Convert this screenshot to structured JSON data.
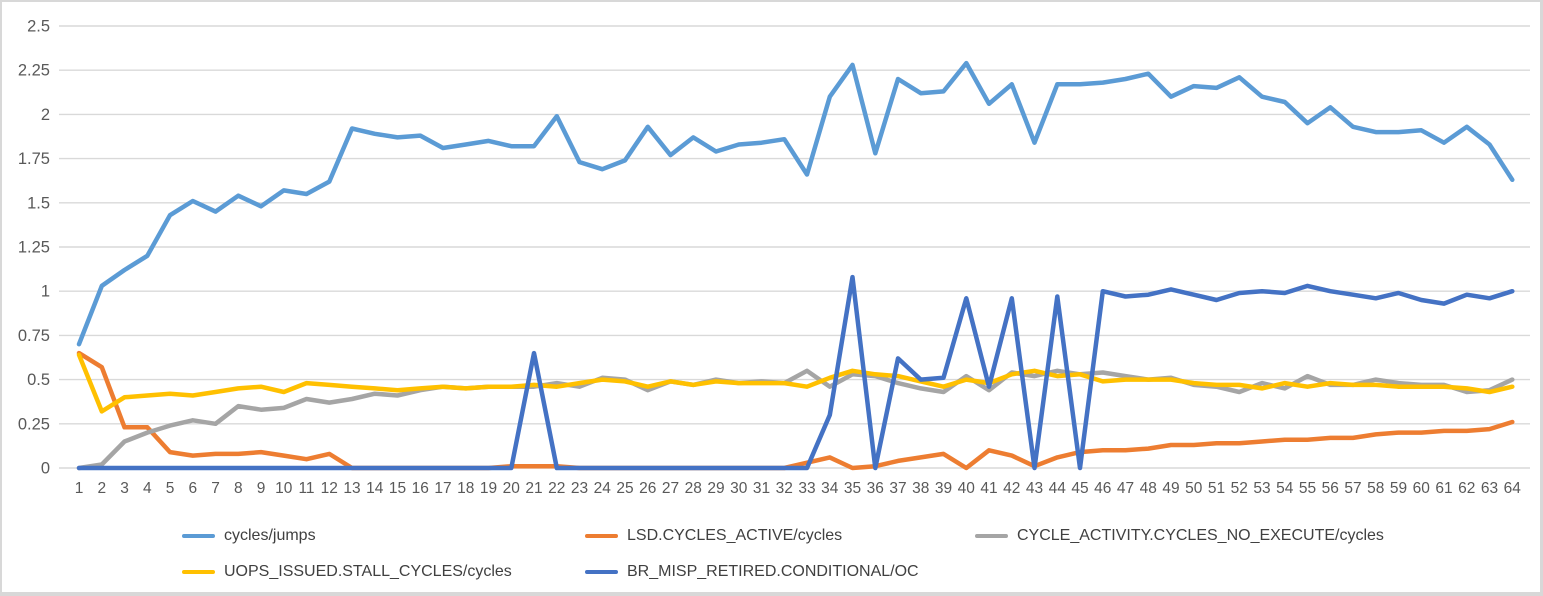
{
  "styles": {
    "background": "#FFFFFF",
    "frame_border_color": "#D8D8D8",
    "grid_color": "#D9D9D9",
    "axis_text_color": "#595959",
    "legend_text_color": "#404040"
  },
  "chart_data": {
    "type": "line",
    "title": "",
    "grid": true,
    "legend_position": "bottom",
    "ylim": [
      0,
      2.5
    ],
    "y_tick_labels": [
      "0",
      "0.25",
      "0.5",
      "0.75",
      "1",
      "1.25",
      "1.5",
      "1.75",
      "2",
      "2.25",
      "2.5"
    ],
    "y_tick_values": [
      0,
      0.25,
      0.5,
      0.75,
      1,
      1.25,
      1.5,
      1.75,
      2,
      2.25,
      2.5
    ],
    "x_categories": [
      1,
      2,
      3,
      4,
      5,
      6,
      7,
      8,
      9,
      10,
      11,
      12,
      13,
      14,
      15,
      16,
      17,
      18,
      19,
      20,
      21,
      22,
      23,
      24,
      25,
      26,
      27,
      28,
      29,
      30,
      31,
      32,
      33,
      34,
      35,
      36,
      37,
      38,
      39,
      40,
      41,
      42,
      43,
      44,
      45,
      46,
      47,
      48,
      49,
      50,
      51,
      52,
      53,
      54,
      55,
      56,
      57,
      58,
      59,
      60,
      61,
      62,
      63,
      64
    ],
    "series": [
      {
        "name": "cycles/jumps",
        "color": "#5B9BD5",
        "values": [
          0.7,
          1.03,
          1.12,
          1.2,
          1.43,
          1.51,
          1.45,
          1.54,
          1.48,
          1.57,
          1.55,
          1.62,
          1.92,
          1.89,
          1.87,
          1.88,
          1.81,
          1.83,
          1.85,
          1.82,
          1.82,
          1.99,
          1.73,
          1.69,
          1.74,
          1.93,
          1.77,
          1.87,
          1.79,
          1.83,
          1.84,
          1.86,
          1.66,
          2.1,
          2.28,
          1.78,
          2.2,
          2.12,
          2.13,
          2.29,
          2.06,
          2.17,
          1.84,
          2.17,
          2.17,
          2.18,
          2.2,
          2.23,
          2.1,
          2.16,
          2.15,
          2.21,
          2.1,
          2.07,
          1.95,
          2.04,
          1.93,
          1.9,
          1.9,
          1.91,
          1.84,
          1.93,
          1.83,
          1.63
        ]
      },
      {
        "name": "LSD.CYCLES_ACTIVE/cycles",
        "color": "#ED7D31",
        "values": [
          0.65,
          0.57,
          0.23,
          0.23,
          0.09,
          0.07,
          0.08,
          0.08,
          0.09,
          0.07,
          0.05,
          0.08,
          0,
          0,
          0,
          0,
          0,
          0,
          0,
          0.01,
          0.01,
          0.01,
          0,
          0,
          0,
          0,
          0,
          0,
          0,
          0,
          0,
          0,
          0.03,
          0.06,
          0,
          0.01,
          0.04,
          0.06,
          0.08,
          0,
          0.1,
          0.07,
          0.01,
          0.06,
          0.09,
          0.1,
          0.1,
          0.11,
          0.13,
          0.13,
          0.14,
          0.14,
          0.15,
          0.16,
          0.16,
          0.17,
          0.17,
          0.19,
          0.2,
          0.2,
          0.21,
          0.21,
          0.22,
          0.26
        ]
      },
      {
        "name": "CYCLE_ACTIVITY.CYCLES_NO_EXECUTE/cycles",
        "color": "#A5A5A5",
        "values": [
          0,
          0.02,
          0.15,
          0.2,
          0.24,
          0.27,
          0.25,
          0.35,
          0.33,
          0.34,
          0.39,
          0.37,
          0.39,
          0.42,
          0.41,
          0.44,
          0.46,
          0.45,
          0.46,
          0.46,
          0.46,
          0.48,
          0.46,
          0.51,
          0.5,
          0.44,
          0.49,
          0.47,
          0.5,
          0.48,
          0.49,
          0.48,
          0.55,
          0.46,
          0.53,
          0.52,
          0.48,
          0.45,
          0.43,
          0.52,
          0.44,
          0.54,
          0.52,
          0.55,
          0.53,
          0.54,
          0.52,
          0.5,
          0.51,
          0.47,
          0.46,
          0.43,
          0.48,
          0.45,
          0.52,
          0.47,
          0.47,
          0.5,
          0.48,
          0.47,
          0.47,
          0.43,
          0.44,
          0.5
        ]
      },
      {
        "name": "UOPS_ISSUED.STALL_CYCLES/cycles",
        "color": "#FFC000",
        "values": [
          0.64,
          0.32,
          0.4,
          0.41,
          0.42,
          0.41,
          0.43,
          0.45,
          0.46,
          0.43,
          0.48,
          0.47,
          0.46,
          0.45,
          0.44,
          0.45,
          0.46,
          0.45,
          0.46,
          0.46,
          0.47,
          0.46,
          0.48,
          0.5,
          0.49,
          0.46,
          0.49,
          0.47,
          0.49,
          0.48,
          0.48,
          0.48,
          0.46,
          0.51,
          0.55,
          0.53,
          0.52,
          0.49,
          0.46,
          0.5,
          0.48,
          0.53,
          0.55,
          0.52,
          0.53,
          0.49,
          0.5,
          0.5,
          0.5,
          0.48,
          0.47,
          0.47,
          0.45,
          0.48,
          0.46,
          0.48,
          0.47,
          0.47,
          0.46,
          0.46,
          0.46,
          0.45,
          0.43,
          0.46
        ]
      },
      {
        "name": "BR_MISP_RETIRED.CONDITIONAL/OC",
        "color": "#4472C4",
        "values": [
          0,
          0,
          0,
          0,
          0,
          0,
          0,
          0,
          0,
          0,
          0,
          0,
          0,
          0,
          0,
          0,
          0,
          0,
          0,
          0,
          0.65,
          0,
          0,
          0,
          0,
          0,
          0,
          0,
          0,
          0,
          0,
          0,
          0,
          0.3,
          1.08,
          0,
          0.62,
          0.5,
          0.51,
          0.96,
          0.46,
          0.96,
          0,
          0.97,
          0,
          1.0,
          0.97,
          0.98,
          1.01,
          0.98,
          0.95,
          0.99,
          1.0,
          0.99,
          1.03,
          1.0,
          0.98,
          0.96,
          0.99,
          0.95,
          0.93,
          0.98,
          0.96,
          1.0
        ]
      }
    ],
    "legend_rows": [
      [
        0,
        1,
        2
      ],
      [
        3,
        4
      ]
    ]
  }
}
